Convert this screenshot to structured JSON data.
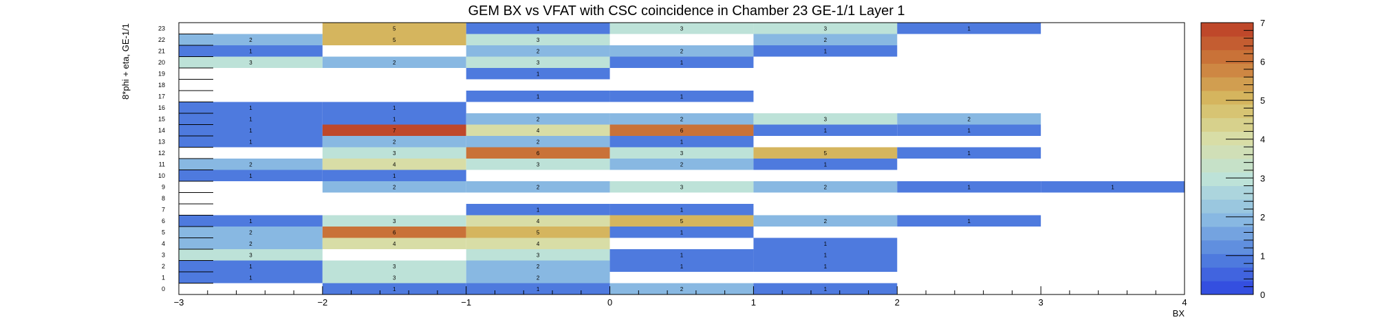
{
  "chart_data": {
    "type": "heatmap",
    "title": "GEM BX vs VFAT with CSC coincidence in Chamber 23 GE-1/1 Layer 1",
    "xlabel": "BX",
    "ylabel": "8*phi + eta, GE-1/1",
    "xlim": [
      -3,
      4
    ],
    "ylim": [
      0,
      24
    ],
    "x_ticks": [
      "−3",
      "−2",
      "−1",
      "0",
      "1",
      "2",
      "3",
      "4"
    ],
    "y_ticks": [
      "0",
      "1",
      "2",
      "3",
      "4",
      "5",
      "6",
      "7",
      "8",
      "9",
      "10",
      "11",
      "12",
      "13",
      "14",
      "15",
      "16",
      "17",
      "18",
      "19",
      "20",
      "21",
      "22",
      "23"
    ],
    "z_range": [
      0,
      7
    ],
    "z_ticks": [
      "0",
      "1",
      "2",
      "3",
      "4",
      "5",
      "6",
      "7"
    ],
    "palette": "kBird-like",
    "cells": [
      {
        "y": 23,
        "x": -2,
        "v": 5
      },
      {
        "y": 23,
        "x": -1,
        "v": 1
      },
      {
        "y": 23,
        "x": 0,
        "v": 3
      },
      {
        "y": 23,
        "x": 1,
        "v": 3
      },
      {
        "y": 23,
        "x": 2,
        "v": 1
      },
      {
        "y": 22,
        "x": -3,
        "v": 2
      },
      {
        "y": 22,
        "x": -2,
        "v": 5
      },
      {
        "y": 22,
        "x": -1,
        "v": 3
      },
      {
        "y": 22,
        "x": 1,
        "v": 2
      },
      {
        "y": 21,
        "x": -3,
        "v": 1
      },
      {
        "y": 21,
        "x": -1,
        "v": 2
      },
      {
        "y": 21,
        "x": 0,
        "v": 2
      },
      {
        "y": 21,
        "x": 1,
        "v": 1
      },
      {
        "y": 20,
        "x": -3,
        "v": 3
      },
      {
        "y": 20,
        "x": -2,
        "v": 2
      },
      {
        "y": 20,
        "x": -1,
        "v": 3
      },
      {
        "y": 20,
        "x": 0,
        "v": 1
      },
      {
        "y": 19,
        "x": -1,
        "v": 1
      },
      {
        "y": 17,
        "x": -1,
        "v": 1
      },
      {
        "y": 17,
        "x": 0,
        "v": 1
      },
      {
        "y": 16,
        "x": -3,
        "v": 1
      },
      {
        "y": 16,
        "x": -2,
        "v": 1
      },
      {
        "y": 15,
        "x": -3,
        "v": 1
      },
      {
        "y": 15,
        "x": -2,
        "v": 1
      },
      {
        "y": 15,
        "x": -1,
        "v": 2
      },
      {
        "y": 15,
        "x": 0,
        "v": 2
      },
      {
        "y": 15,
        "x": 1,
        "v": 3
      },
      {
        "y": 15,
        "x": 2,
        "v": 2
      },
      {
        "y": 14,
        "x": -3,
        "v": 1
      },
      {
        "y": 14,
        "x": -2,
        "v": 7
      },
      {
        "y": 14,
        "x": -1,
        "v": 4
      },
      {
        "y": 14,
        "x": 0,
        "v": 6
      },
      {
        "y": 14,
        "x": 1,
        "v": 1
      },
      {
        "y": 14,
        "x": 2,
        "v": 1
      },
      {
        "y": 13,
        "x": -3,
        "v": 1
      },
      {
        "y": 13,
        "x": -2,
        "v": 2
      },
      {
        "y": 13,
        "x": -1,
        "v": 2
      },
      {
        "y": 13,
        "x": 0,
        "v": 1
      },
      {
        "y": 12,
        "x": -2,
        "v": 3
      },
      {
        "y": 12,
        "x": -1,
        "v": 6
      },
      {
        "y": 12,
        "x": 0,
        "v": 3
      },
      {
        "y": 12,
        "x": 1,
        "v": 5
      },
      {
        "y": 12,
        "x": 2,
        "v": 1
      },
      {
        "y": 11,
        "x": -3,
        "v": 2
      },
      {
        "y": 11,
        "x": -2,
        "v": 4
      },
      {
        "y": 11,
        "x": -1,
        "v": 3
      },
      {
        "y": 11,
        "x": 0,
        "v": 2
      },
      {
        "y": 11,
        "x": 1,
        "v": 1
      },
      {
        "y": 10,
        "x": -3,
        "v": 1
      },
      {
        "y": 10,
        "x": -2,
        "v": 1
      },
      {
        "y": 9,
        "x": -2,
        "v": 2
      },
      {
        "y": 9,
        "x": -1,
        "v": 2
      },
      {
        "y": 9,
        "x": 0,
        "v": 3
      },
      {
        "y": 9,
        "x": 1,
        "v": 2
      },
      {
        "y": 9,
        "x": 2,
        "v": 1
      },
      {
        "y": 9,
        "x": 3,
        "v": 1
      },
      {
        "y": 7,
        "x": -1,
        "v": 1
      },
      {
        "y": 7,
        "x": 0,
        "v": 1
      },
      {
        "y": 6,
        "x": -3,
        "v": 1
      },
      {
        "y": 6,
        "x": -2,
        "v": 3
      },
      {
        "y": 6,
        "x": -1,
        "v": 4
      },
      {
        "y": 6,
        "x": 0,
        "v": 5
      },
      {
        "y": 6,
        "x": 1,
        "v": 2
      },
      {
        "y": 6,
        "x": 2,
        "v": 1
      },
      {
        "y": 5,
        "x": -3,
        "v": 2
      },
      {
        "y": 5,
        "x": -2,
        "v": 6
      },
      {
        "y": 5,
        "x": -1,
        "v": 5
      },
      {
        "y": 5,
        "x": 0,
        "v": 1
      },
      {
        "y": 4,
        "x": -3,
        "v": 2
      },
      {
        "y": 4,
        "x": -2,
        "v": 4
      },
      {
        "y": 4,
        "x": -1,
        "v": 4
      },
      {
        "y": 4,
        "x": 1,
        "v": 1
      },
      {
        "y": 3,
        "x": -3,
        "v": 3
      },
      {
        "y": 3,
        "x": -1,
        "v": 3
      },
      {
        "y": 3,
        "x": 0,
        "v": 1
      },
      {
        "y": 3,
        "x": 1,
        "v": 1
      },
      {
        "y": 2,
        "x": -3,
        "v": 1
      },
      {
        "y": 2,
        "x": -2,
        "v": 3
      },
      {
        "y": 2,
        "x": -1,
        "v": 2
      },
      {
        "y": 2,
        "x": 0,
        "v": 1
      },
      {
        "y": 2,
        "x": 1,
        "v": 1
      },
      {
        "y": 1,
        "x": -3,
        "v": 1
      },
      {
        "y": 1,
        "x": -2,
        "v": 3
      },
      {
        "y": 1,
        "x": -1,
        "v": 2
      },
      {
        "y": 0,
        "x": -2,
        "v": 1
      },
      {
        "y": 0,
        "x": -1,
        "v": 1
      },
      {
        "y": 0,
        "x": 0,
        "v": 2
      },
      {
        "y": 0,
        "x": 1,
        "v": 1
      }
    ]
  }
}
